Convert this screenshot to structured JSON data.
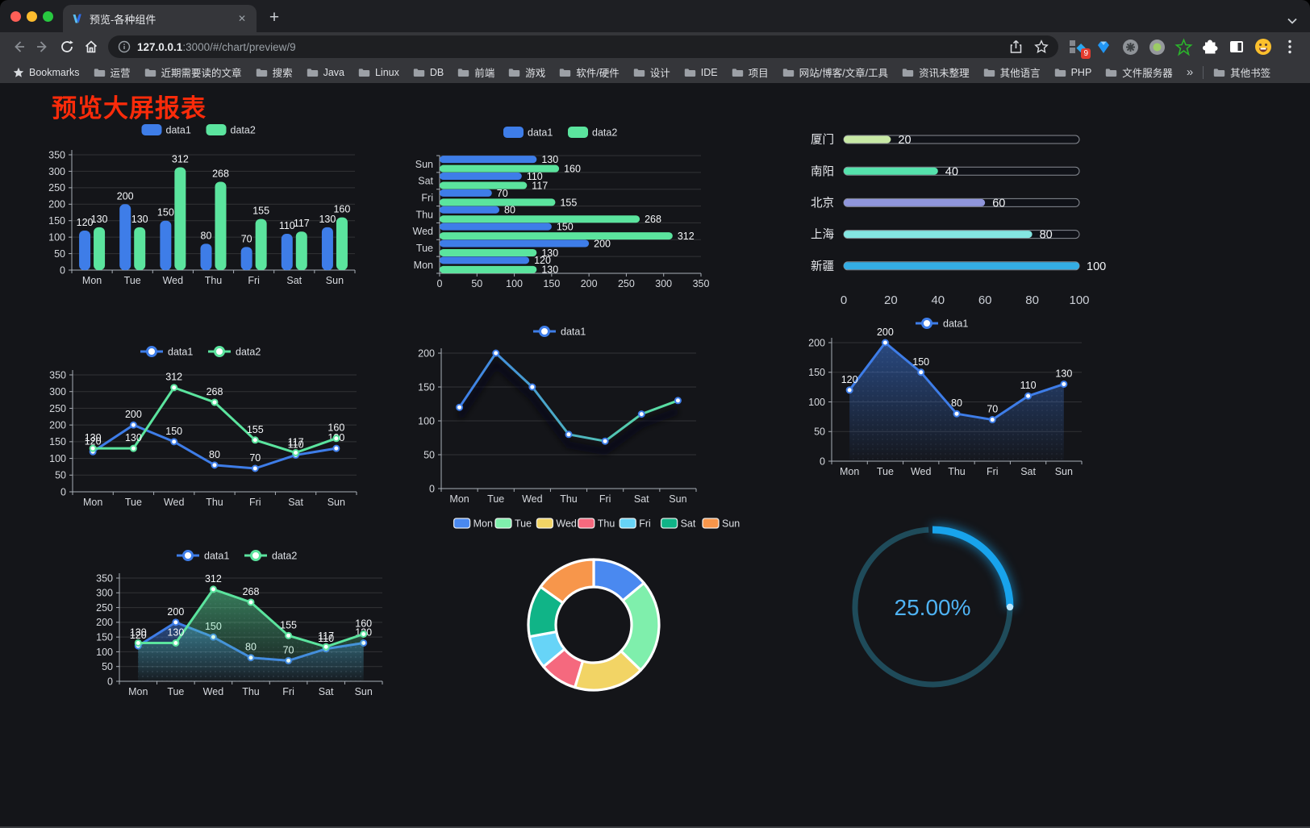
{
  "browser": {
    "tab_title": "预览-各种组件",
    "url_host": "127.0.0.1",
    "url_rest": ":3000/#/chart/preview/9",
    "bookmarks_root_label": "Bookmarks",
    "bookmarks": [
      "运营",
      "近期需要读的文章",
      "搜索",
      "Java",
      "Linux",
      "DB",
      "前端",
      "游戏",
      "软件/硬件",
      "设计",
      "IDE",
      "项目",
      "网站/博客/文章/工具",
      "资讯未整理",
      "其他语言",
      "PHP",
      "文件服务器"
    ],
    "bookmarks_overflow": "»",
    "other_bookmarks_label": "其他书签",
    "extension_badge": "9",
    "glyphs": {
      "close": "✕",
      "new_tab": "+"
    }
  },
  "page": {
    "title": "预览大屏报表",
    "title_color": "#FA2B0A"
  },
  "chart_data": [
    {
      "id": "grouped-bar",
      "type": "bar",
      "categories": [
        "Mon",
        "Tue",
        "Wed",
        "Thu",
        "Fri",
        "Sat",
        "Sun"
      ],
      "series": [
        {
          "name": "data1",
          "color": "#3E7DE8",
          "values": [
            120,
            200,
            150,
            80,
            70,
            110,
            130
          ]
        },
        {
          "name": "data2",
          "color": "#5BE49E",
          "values": [
            130,
            130,
            312,
            268,
            155,
            117,
            160
          ]
        }
      ],
      "ylim": [
        0,
        350
      ],
      "ytick_step": 50,
      "value_labels": true,
      "legend_position": "top",
      "grid": true
    },
    {
      "id": "horizontal-bar",
      "type": "hbar",
      "categories": [
        "Mon",
        "Tue",
        "Wed",
        "Thu",
        "Fri",
        "Sat",
        "Sun"
      ],
      "series": [
        {
          "name": "data1",
          "color": "#3E7DE8",
          "values": [
            120,
            200,
            150,
            80,
            70,
            110,
            130
          ]
        },
        {
          "name": "data2",
          "color": "#5BE49E",
          "values": [
            130,
            130,
            312,
            268,
            155,
            117,
            160
          ]
        }
      ],
      "xlim": [
        0,
        350
      ],
      "xtick_step": 50,
      "value_labels": true,
      "legend_position": "top"
    },
    {
      "id": "progress-bars",
      "type": "progress",
      "categories": [
        "厦门",
        "南阳",
        "北京",
        "上海",
        "新疆"
      ],
      "values": [
        20,
        40,
        60,
        80,
        100
      ],
      "colors": [
        "#C8E9A5",
        "#55E2AC",
        "#9096DC",
        "#84E6E2",
        "#34ADE4"
      ],
      "xlim": [
        0,
        100
      ],
      "xticks": [
        0,
        20,
        40,
        60,
        80,
        100
      ]
    },
    {
      "id": "two-series-line",
      "type": "line",
      "categories": [
        "Mon",
        "Tue",
        "Wed",
        "Thu",
        "Fri",
        "Sat",
        "Sun"
      ],
      "series": [
        {
          "name": "data1",
          "color": "#3E7DE8",
          "values": [
            120,
            200,
            150,
            80,
            70,
            110,
            130
          ]
        },
        {
          "name": "data2",
          "color": "#5BE49E",
          "values": [
            130,
            130,
            312,
            268,
            155,
            117,
            160
          ]
        }
      ],
      "ylim": [
        0,
        350
      ],
      "ytick_step": 50,
      "value_labels": true,
      "legend_position": "top"
    },
    {
      "id": "gradient-line",
      "type": "line",
      "categories": [
        "Mon",
        "Tue",
        "Wed",
        "Thu",
        "Fri",
        "Sat",
        "Sun"
      ],
      "series": [
        {
          "name": "data1",
          "color": "#3E7DE8",
          "gradient": [
            "#3E7DE8",
            "#5BE49E"
          ],
          "values": [
            120,
            200,
            150,
            80,
            70,
            110,
            130
          ]
        }
      ],
      "ylim": [
        0,
        200
      ],
      "ytick_step": 50,
      "value_labels": false,
      "legend_position": "top"
    },
    {
      "id": "single-area-line",
      "type": "line",
      "categories": [
        "Mon",
        "Tue",
        "Wed",
        "Thu",
        "Fri",
        "Sat",
        "Sun"
      ],
      "series": [
        {
          "name": "data1",
          "color": "#3E7DE8",
          "area": true,
          "values": [
            120,
            200,
            150,
            80,
            70,
            110,
            130
          ]
        }
      ],
      "ylim": [
        0,
        200
      ],
      "ytick_step": 50,
      "value_labels": true,
      "legend_position": "top"
    },
    {
      "id": "two-series-area-line",
      "type": "line",
      "categories": [
        "Mon",
        "Tue",
        "Wed",
        "Thu",
        "Fri",
        "Sat",
        "Sun"
      ],
      "series": [
        {
          "name": "data1",
          "color": "#3E7DE8",
          "area": true,
          "values": [
            120,
            200,
            150,
            80,
            70,
            110,
            130
          ]
        },
        {
          "name": "data2",
          "color": "#5BE49E",
          "area": true,
          "values": [
            130,
            130,
            312,
            268,
            155,
            117,
            160
          ]
        }
      ],
      "ylim": [
        0,
        350
      ],
      "ytick_step": 50,
      "value_labels": true,
      "legend_position": "top"
    },
    {
      "id": "donut",
      "type": "pie",
      "categories": [
        "Mon",
        "Tue",
        "Wed",
        "Thu",
        "Fri",
        "Sat",
        "Sun"
      ],
      "values": [
        120,
        200,
        150,
        80,
        70,
        110,
        130
      ],
      "colors": [
        "#4A89F0",
        "#7FEFAC",
        "#F2D465",
        "#F5697E",
        "#67D4F7",
        "#10B487",
        "#F7964B"
      ],
      "legend_position": "top"
    },
    {
      "id": "gauge",
      "type": "gauge",
      "value": 25,
      "label": "25.00%",
      "track_color": "#1F4B5A",
      "progress_color": "#18A3EC",
      "text_color": "#4FB3F4"
    }
  ]
}
